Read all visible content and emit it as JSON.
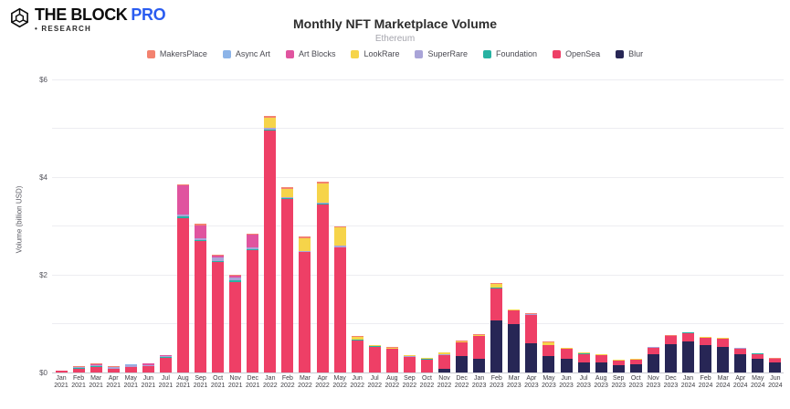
{
  "header": {
    "logo_main": "THE BLOCK",
    "logo_pro": "PRO",
    "logo_sub": "• RESEARCH"
  },
  "chart_data": {
    "type": "bar",
    "stacked": true,
    "title": "Monthly NFT Marketplace Volume",
    "subtitle": "Ethereum",
    "ylabel": "Volume (billion USD)",
    "ylim": [
      0,
      6
    ],
    "grid": true,
    "gridline_values": [
      1,
      2,
      3,
      4,
      5,
      6
    ],
    "yticks": [
      {
        "value": 0,
        "label": "$0"
      },
      {
        "value": 2,
        "label": "$2"
      },
      {
        "value": 4,
        "label": "$4"
      },
      {
        "value": 6,
        "label": "$6"
      }
    ],
    "legend_position": "top",
    "categories": [
      "Jan 2021",
      "Feb 2021",
      "Mar 2021",
      "Apr 2021",
      "May 2021",
      "Jun 2021",
      "Jul 2021",
      "Aug 2021",
      "Sep 2021",
      "Oct 2021",
      "Nov 2021",
      "Dec 2021",
      "Jan 2022",
      "Feb 2022",
      "Mar 2022",
      "Apr 2022",
      "May 2022",
      "Jun 2022",
      "Jul 2022",
      "Aug 2022",
      "Sep 2022",
      "Oct 2022",
      "Nov 2022",
      "Dec 2022",
      "Jan 2023",
      "Feb 2023",
      "Mar 2023",
      "Apr 2023",
      "May 2023",
      "Jun 2023",
      "Jul 2023",
      "Aug 2023",
      "Sep 2023",
      "Oct 2023",
      "Nov 2023",
      "Dec 2023",
      "Jan 2024",
      "Feb 2024",
      "Mar 2024",
      "Apr 2024",
      "May 2024",
      "Jun 2024"
    ],
    "series": [
      {
        "name": "MakersPlace",
        "color": "#f3826f",
        "values": [
          0.005,
          0.01,
          0.01,
          0.01,
          0.01,
          0.01,
          0.01,
          0.02,
          0.02,
          0.02,
          0.02,
          0.02,
          0.05,
          0.04,
          0.03,
          0.04,
          0.03,
          0.01,
          0.01,
          0.01,
          0.005,
          0.005,
          0.01,
          0.01,
          0.01,
          0.02,
          0.01,
          0.01,
          0.005,
          0.005,
          0.005,
          0.005,
          0.005,
          0.005,
          0.005,
          0.005,
          0.005,
          0.005,
          0.005,
          0.005,
          0.005,
          0.005
        ]
      },
      {
        "name": "Async Art",
        "color": "#8cb4e8",
        "values": [
          0,
          0.005,
          0.005,
          0.005,
          0.005,
          0.005,
          0,
          0,
          0,
          0,
          0,
          0,
          0,
          0,
          0,
          0,
          0,
          0,
          0,
          0,
          0,
          0,
          0,
          0,
          0,
          0,
          0,
          0,
          0,
          0,
          0,
          0,
          0,
          0,
          0,
          0,
          0,
          0,
          0,
          0,
          0,
          0
        ]
      },
      {
        "name": "Art Blocks",
        "color": "#e0549f",
        "values": [
          0,
          0,
          0.01,
          0,
          0.01,
          0.02,
          0.02,
          0.6,
          0.28,
          0.03,
          0.03,
          0.25,
          0,
          0,
          0,
          0,
          0,
          0,
          0,
          0,
          0,
          0,
          0,
          0,
          0,
          0,
          0,
          0,
          0,
          0,
          0,
          0,
          0,
          0,
          0,
          0,
          0,
          0,
          0,
          0,
          0,
          0
        ]
      },
      {
        "name": "LookRare",
        "color": "#f6d44a",
        "values": [
          0,
          0,
          0,
          0,
          0,
          0,
          0,
          0,
          0,
          0,
          0,
          0,
          0.2,
          0.16,
          0.26,
          0.4,
          0.38,
          0.06,
          0.02,
          0.02,
          0.02,
          0.015,
          0.04,
          0.02,
          0.025,
          0.07,
          0.01,
          0.015,
          0.055,
          0.02,
          0.02,
          0.015,
          0.01,
          0.01,
          0.005,
          0.005,
          0.005,
          0.005,
          0.005,
          0,
          0,
          0
        ]
      },
      {
        "name": "SuperRare",
        "color": "#a9a4d8",
        "values": [
          0.005,
          0.02,
          0.03,
          0.03,
          0.03,
          0.02,
          0.02,
          0.04,
          0.03,
          0.08,
          0.06,
          0.04,
          0.03,
          0.02,
          0.02,
          0.02,
          0.02,
          0.01,
          0.005,
          0.005,
          0.005,
          0.005,
          0.005,
          0.005,
          0.005,
          0.005,
          0.005,
          0.005,
          0.005,
          0.005,
          0.005,
          0.005,
          0.005,
          0.005,
          0.005,
          0.005,
          0.005,
          0.005,
          0.005,
          0.005,
          0.005,
          0.005
        ]
      },
      {
        "name": "Foundation",
        "color": "#27b2a2",
        "values": [
          0,
          0.01,
          0.02,
          0.01,
          0.01,
          0.01,
          0.01,
          0.03,
          0.02,
          0.02,
          0.03,
          0.02,
          0.02,
          0.01,
          0.01,
          0.01,
          0.01,
          0.005,
          0.005,
          0.005,
          0.005,
          0.005,
          0.005,
          0.005,
          0.005,
          0.005,
          0.005,
          0.005,
          0.005,
          0.005,
          0.005,
          0.005,
          0.005,
          0.005,
          0.005,
          0.005,
          0.005,
          0.005,
          0.005,
          0.005,
          0.005,
          0.005
        ]
      },
      {
        "name": "OpenSea",
        "color": "#ee3f66",
        "values": [
          0.02,
          0.07,
          0.1,
          0.06,
          0.1,
          0.12,
          0.29,
          3.15,
          2.68,
          2.25,
          1.85,
          2.5,
          4.95,
          3.55,
          2.45,
          3.43,
          2.55,
          0.65,
          0.52,
          0.47,
          0.31,
          0.26,
          0.28,
          0.27,
          0.45,
          0.66,
          0.28,
          0.58,
          0.22,
          0.2,
          0.17,
          0.14,
          0.09,
          0.1,
          0.13,
          0.16,
          0.17,
          0.15,
          0.16,
          0.12,
          0.09,
          0.07
        ]
      },
      {
        "name": "Blur",
        "color": "#272655",
        "values": [
          0,
          0,
          0,
          0,
          0,
          0,
          0,
          0,
          0,
          0,
          0,
          0,
          0,
          0,
          0,
          0,
          0,
          0,
          0,
          0,
          0,
          0,
          0.07,
          0.33,
          0.28,
          1.06,
          0.98,
          0.59,
          0.33,
          0.27,
          0.2,
          0.2,
          0.14,
          0.15,
          0.37,
          0.57,
          0.63,
          0.55,
          0.52,
          0.36,
          0.28,
          0.2
        ]
      }
    ]
  }
}
